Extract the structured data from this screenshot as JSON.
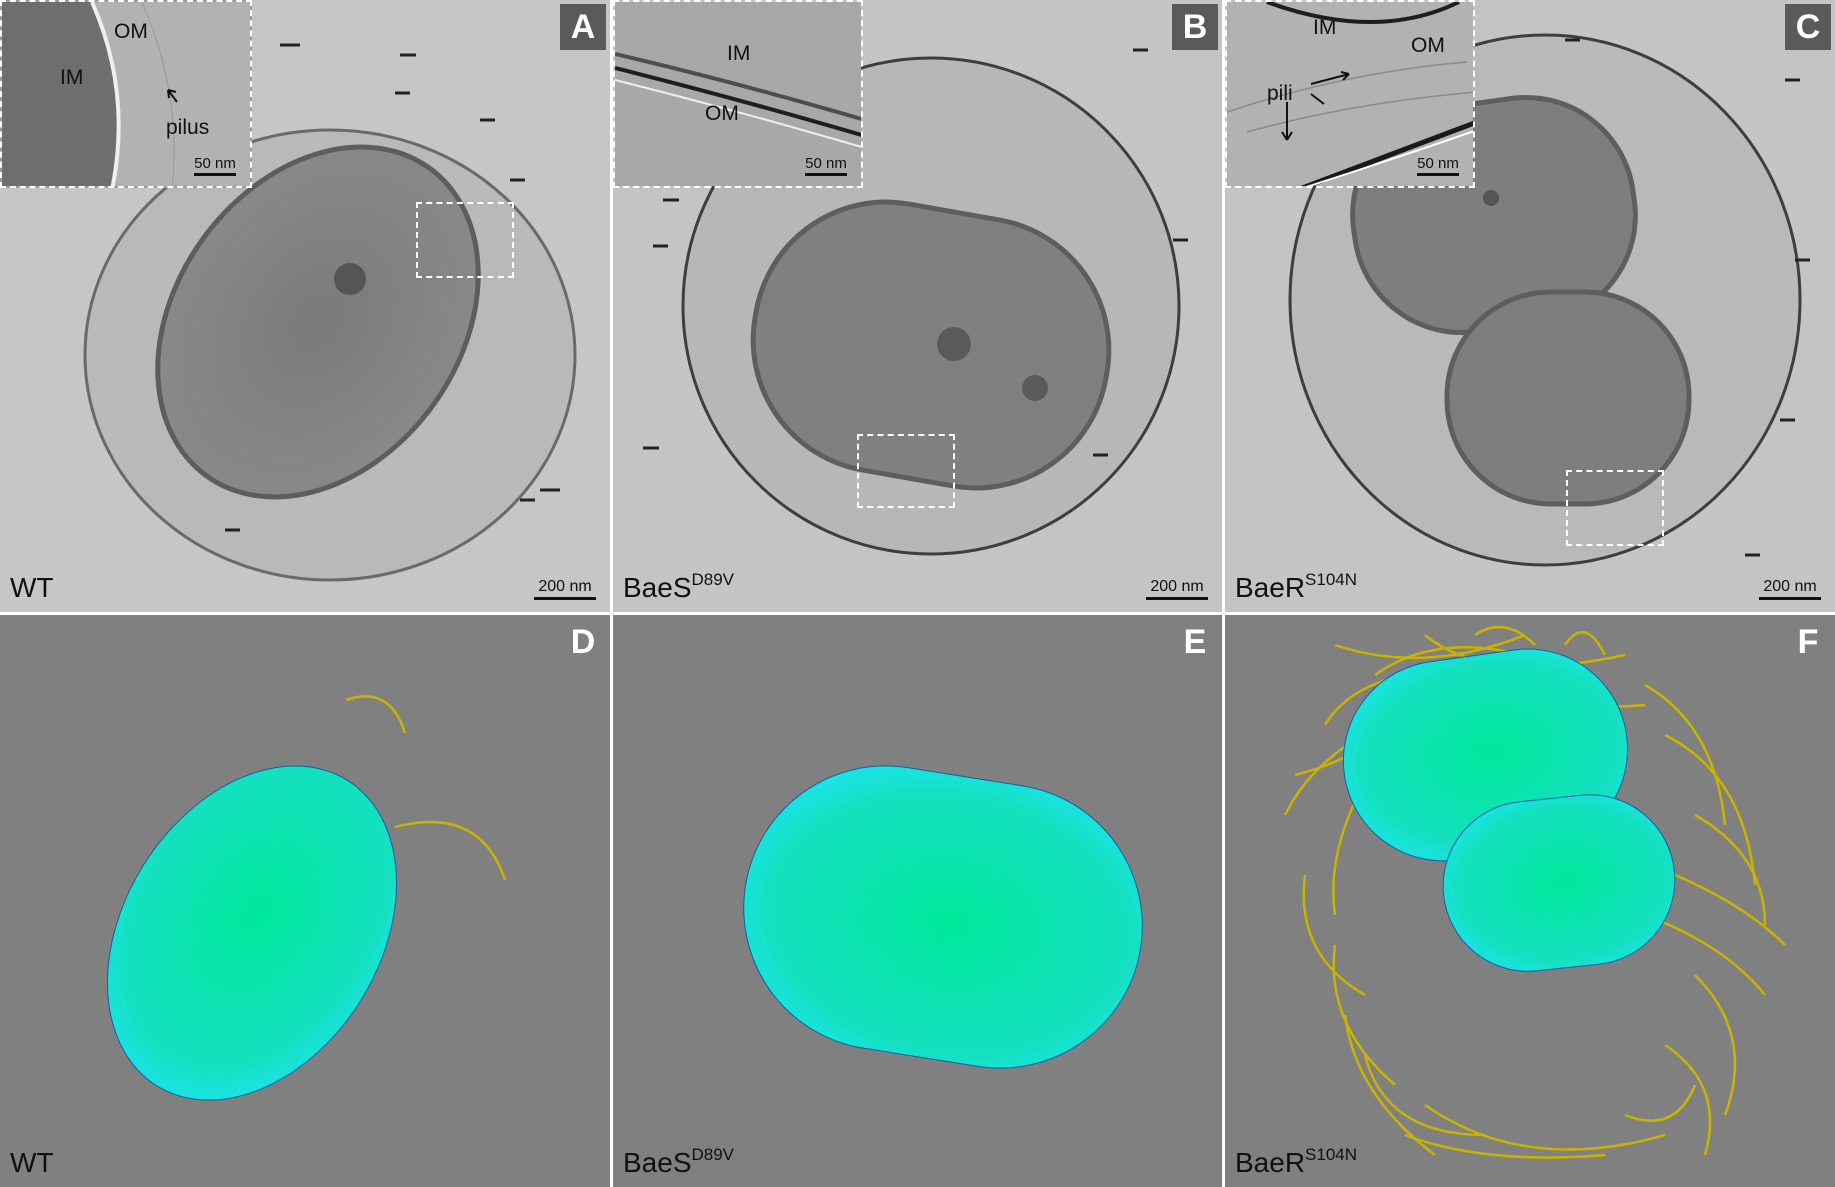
{
  "panels": {
    "A": {
      "letter": "A",
      "strain": "WT",
      "strain_sup": "",
      "scale": "200 nm",
      "inset": {
        "labels": [
          "OM",
          "IM",
          "pilus"
        ],
        "scale": "50 nm"
      }
    },
    "B": {
      "letter": "B",
      "strain": "BaeS",
      "strain_sup": "D89V",
      "scale": "200 nm",
      "inset": {
        "labels": [
          "IM",
          "OM"
        ],
        "scale": "50 nm"
      }
    },
    "C": {
      "letter": "C",
      "strain": "BaeR",
      "strain_sup": "S104N",
      "scale": "200 nm",
      "inset": {
        "labels": [
          "IM",
          "OM",
          "pili"
        ],
        "scale": "50 nm"
      }
    },
    "D": {
      "letter": "D",
      "strain": "WT",
      "strain_sup": ""
    },
    "E": {
      "letter": "E",
      "strain": "BaeS",
      "strain_sup": "D89V"
    },
    "F": {
      "letter": "F",
      "strain": "BaeR",
      "strain_sup": "S104N"
    }
  },
  "colors": {
    "em_bg": "#c4c4c4",
    "render_bg": "#808080",
    "cell_core": "#00e8a0",
    "cell_edge": "#18e0ee",
    "pili": "#c8b400"
  }
}
